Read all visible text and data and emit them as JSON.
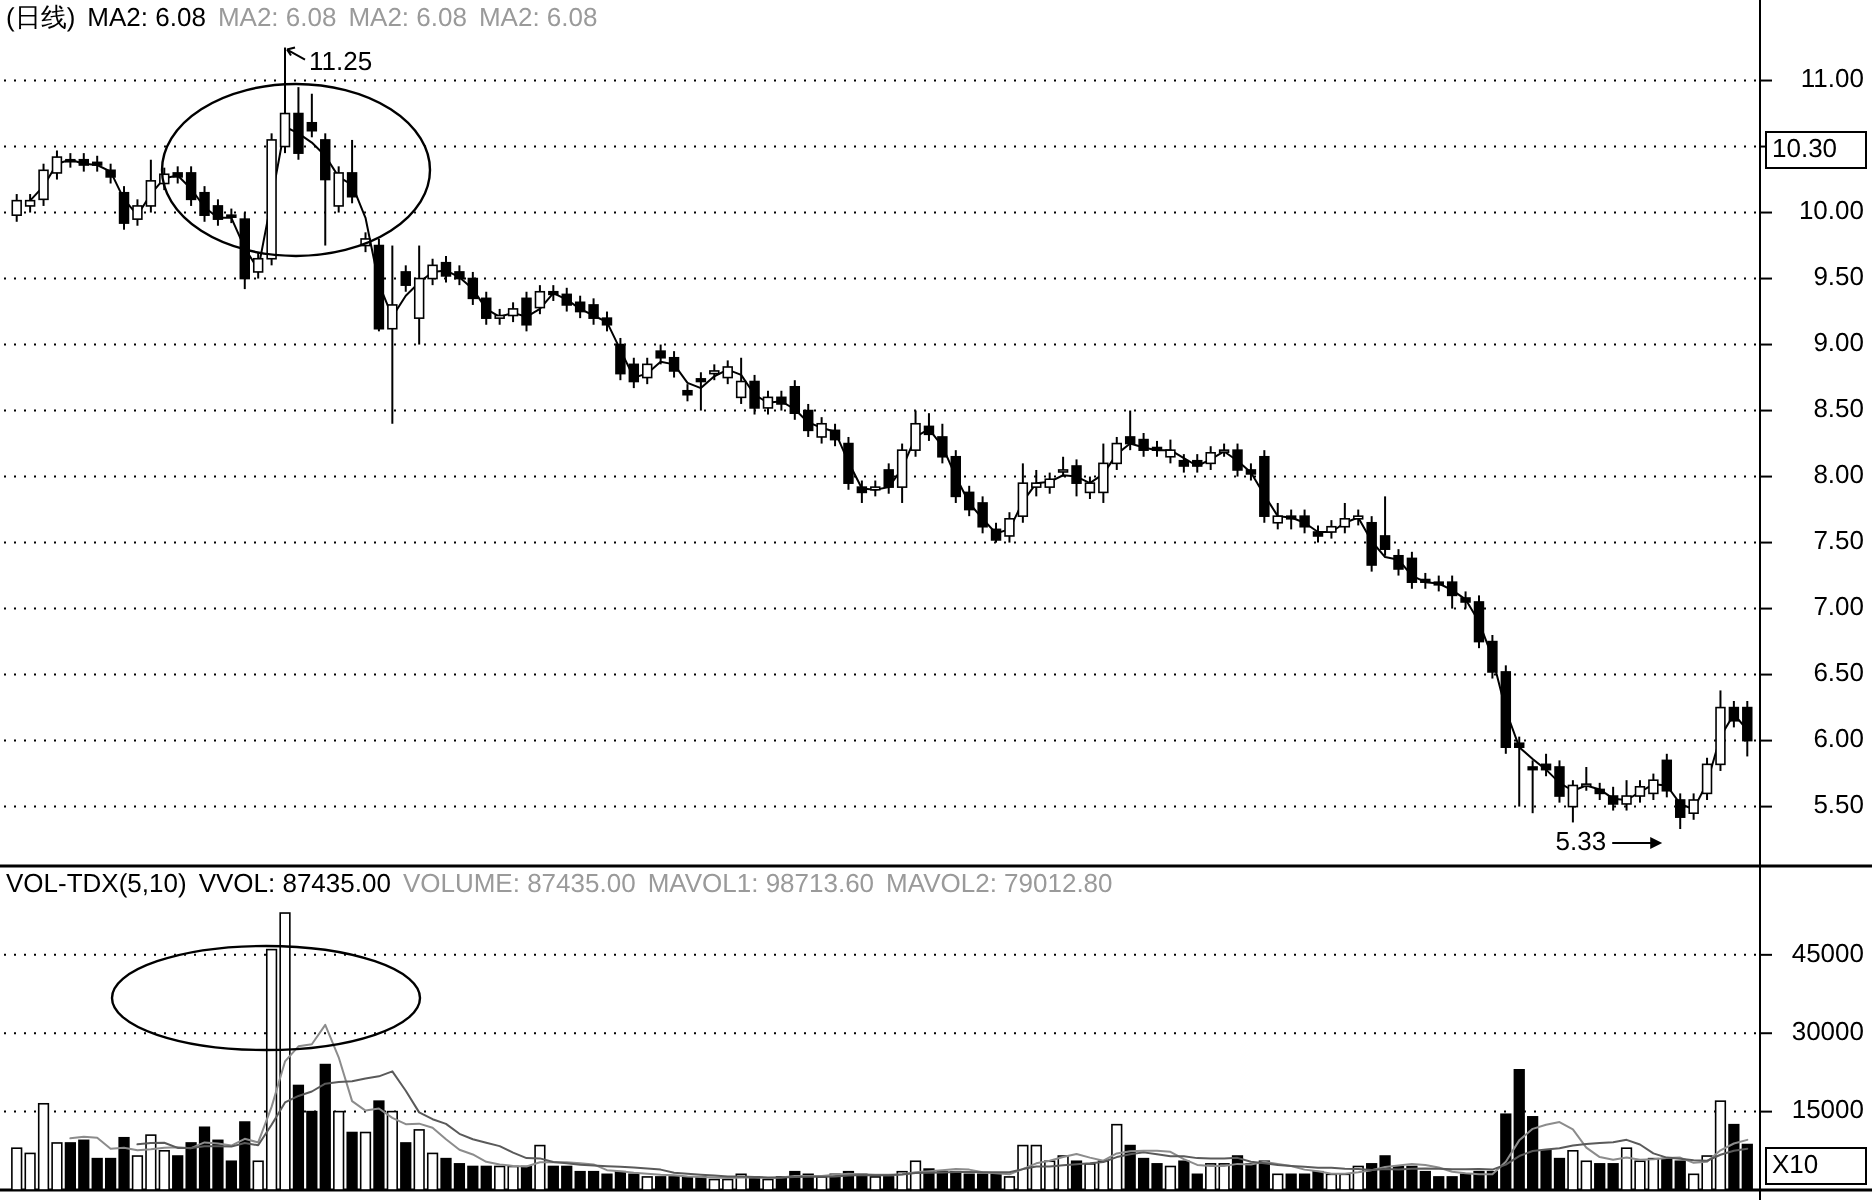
{
  "chart_data": [
    {
      "type": "candlestick",
      "title": "(日线)",
      "ylim": [
        5.05,
        11.61
      ],
      "yticks": [
        {
          "value": 5.5,
          "label": "5.50"
        },
        {
          "value": 6,
          "label": "6.00"
        },
        {
          "value": 6.5,
          "label": "6.50"
        },
        {
          "value": 7,
          "label": "7.00"
        },
        {
          "value": 7.5,
          "label": "7.50"
        },
        {
          "value": 8,
          "label": "8.00"
        },
        {
          "value": 8.5,
          "label": "8.50"
        },
        {
          "value": 9,
          "label": "9.00"
        },
        {
          "value": 9.5,
          "label": "9.50"
        },
        {
          "value": 10,
          "label": "10.00"
        },
        {
          "value": 10.5,
          "label": null
        },
        {
          "value": 11,
          "label": "11.00"
        }
      ],
      "grid": "y",
      "tick_labels": "y",
      "annotations": [
        "MA2: 6.08",
        "MA2: 6.08",
        "MA2: 6.08",
        "11.25",
        "5.33",
        "10.30"
      ],
      "categories": [
        null,
        null,
        null,
        null,
        null,
        null,
        null,
        null,
        null,
        null,
        null,
        null,
        null,
        null,
        null,
        null,
        null,
        null,
        null,
        null,
        null,
        null,
        null,
        null,
        null,
        null,
        null,
        null,
        null,
        null,
        null,
        null,
        null,
        null,
        null,
        null,
        null,
        null,
        null,
        null,
        null,
        null,
        null,
        null,
        null,
        null,
        null,
        null,
        null,
        null,
        null,
        null,
        null,
        null,
        null,
        null,
        null,
        null,
        null,
        null,
        null,
        null,
        null,
        null,
        null,
        null,
        null,
        null,
        null,
        null,
        null,
        null,
        null,
        null,
        null,
        null,
        null,
        null,
        null,
        null,
        null,
        null,
        null,
        null,
        null,
        null,
        null,
        null,
        null,
        null,
        null,
        null,
        null,
        null,
        null,
        null,
        null,
        null,
        null,
        null,
        null,
        null,
        null,
        null,
        null,
        null,
        null,
        null,
        null,
        null,
        null,
        null,
        null,
        null,
        null,
        null,
        null,
        null,
        null,
        null,
        null,
        null,
        null,
        null,
        null,
        null,
        null,
        null,
        null,
        null
      ],
      "ohlc": [
        [
          9.98,
          10.14,
          9.93,
          10.09
        ],
        [
          10.05,
          10.14,
          10.0,
          10.09
        ],
        [
          10.1,
          10.37,
          10.05,
          10.32
        ],
        [
          10.3,
          10.47,
          10.25,
          10.42
        ],
        [
          10.4,
          10.45,
          10.34,
          10.39
        ],
        [
          10.4,
          10.45,
          10.31,
          10.36
        ],
        [
          10.38,
          10.43,
          10.31,
          10.36
        ],
        [
          10.32,
          10.37,
          10.22,
          10.27
        ],
        [
          10.15,
          10.2,
          9.87,
          9.92
        ],
        [
          9.95,
          10.1,
          9.9,
          10.05
        ],
        [
          10.05,
          10.4,
          10.0,
          10.24
        ],
        [
          10.22,
          10.34,
          10.17,
          10.29
        ],
        [
          10.3,
          10.35,
          10.22,
          10.27
        ],
        [
          10.3,
          10.35,
          10.05,
          10.1
        ],
        [
          10.15,
          10.2,
          9.93,
          9.98
        ],
        [
          10.05,
          10.1,
          9.9,
          9.95
        ],
        [
          9.98,
          10.03,
          9.92,
          9.97
        ],
        [
          9.95,
          10.0,
          9.42,
          9.5
        ],
        [
          9.55,
          9.7,
          9.5,
          9.65
        ],
        [
          9.65,
          10.6,
          9.6,
          10.55
        ],
        [
          10.5,
          11.25,
          10.45,
          10.75
        ],
        [
          10.75,
          10.95,
          10.4,
          10.45
        ],
        [
          10.68,
          10.9,
          10.57,
          10.62
        ],
        [
          10.55,
          10.6,
          9.75,
          10.25
        ],
        [
          10.05,
          10.35,
          10.0,
          10.3
        ],
        [
          10.3,
          10.55,
          10.07,
          10.12
        ],
        [
          9.75,
          9.85,
          9.7,
          9.8
        ],
        [
          9.75,
          9.8,
          9.1,
          9.12
        ],
        [
          9.12,
          9.75,
          8.4,
          9.3
        ],
        [
          9.55,
          9.6,
          9.4,
          9.45
        ],
        [
          9.2,
          9.75,
          9.0,
          9.5
        ],
        [
          9.5,
          9.65,
          9.45,
          9.6
        ],
        [
          9.62,
          9.67,
          9.47,
          9.52
        ],
        [
          9.55,
          9.6,
          9.45,
          9.5
        ],
        [
          9.5,
          9.55,
          9.3,
          9.35
        ],
        [
          9.35,
          9.4,
          9.15,
          9.2
        ],
        [
          9.2,
          9.27,
          9.15,
          9.22
        ],
        [
          9.22,
          9.32,
          9.17,
          9.27
        ],
        [
          9.35,
          9.4,
          9.1,
          9.15
        ],
        [
          9.28,
          9.45,
          9.23,
          9.4
        ],
        [
          9.4,
          9.45,
          9.33,
          9.38
        ],
        [
          9.38,
          9.43,
          9.25,
          9.3
        ],
        [
          9.32,
          9.37,
          9.2,
          9.25
        ],
        [
          9.3,
          9.35,
          9.15,
          9.2
        ],
        [
          9.2,
          9.25,
          9.1,
          9.15
        ],
        [
          9.0,
          9.05,
          8.73,
          8.78
        ],
        [
          8.85,
          8.9,
          8.67,
          8.72
        ],
        [
          8.75,
          8.9,
          8.7,
          8.85
        ],
        [
          8.95,
          9.0,
          8.85,
          8.9
        ],
        [
          8.9,
          8.95,
          8.75,
          8.8
        ],
        [
          8.65,
          8.7,
          8.57,
          8.62
        ],
        [
          8.74,
          8.79,
          8.5,
          8.72
        ],
        [
          8.78,
          8.85,
          8.73,
          8.8
        ],
        [
          8.75,
          8.88,
          8.7,
          8.83
        ],
        [
          8.6,
          8.9,
          8.55,
          8.72
        ],
        [
          8.72,
          8.77,
          8.47,
          8.52
        ],
        [
          8.52,
          8.65,
          8.47,
          8.6
        ],
        [
          8.6,
          8.65,
          8.5,
          8.55
        ],
        [
          8.68,
          8.73,
          8.43,
          8.48
        ],
        [
          8.5,
          8.55,
          8.3,
          8.35
        ],
        [
          8.3,
          8.45,
          8.25,
          8.4
        ],
        [
          8.35,
          8.4,
          8.23,
          8.28
        ],
        [
          8.25,
          8.3,
          7.9,
          7.95
        ],
        [
          7.92,
          7.97,
          7.8,
          7.88
        ],
        [
          7.9,
          7.97,
          7.85,
          7.92
        ],
        [
          8.05,
          8.1,
          7.87,
          7.92
        ],
        [
          7.92,
          8.25,
          7.8,
          8.2
        ],
        [
          8.2,
          8.5,
          8.15,
          8.4
        ],
        [
          8.38,
          8.48,
          8.27,
          8.32
        ],
        [
          8.3,
          8.4,
          8.1,
          8.15
        ],
        [
          8.15,
          8.2,
          7.8,
          7.85
        ],
        [
          7.88,
          7.93,
          7.7,
          7.75
        ],
        [
          7.8,
          7.85,
          7.57,
          7.62
        ],
        [
          7.6,
          7.65,
          7.5,
          7.52
        ],
        [
          7.55,
          7.73,
          7.5,
          7.68
        ],
        [
          7.7,
          8.1,
          7.65,
          7.95
        ],
        [
          7.92,
          8.05,
          7.85,
          7.95
        ],
        [
          7.92,
          8.03,
          7.87,
          7.98
        ],
        [
          8.05,
          8.15,
          8.0,
          8.05
        ],
        [
          8.08,
          8.13,
          7.85,
          7.95
        ],
        [
          7.88,
          8.0,
          7.83,
          7.95
        ],
        [
          7.88,
          8.25,
          7.8,
          8.1
        ],
        [
          8.1,
          8.3,
          8.05,
          8.25
        ],
        [
          8.3,
          8.5,
          8.2,
          8.25
        ],
        [
          8.28,
          8.33,
          8.15,
          8.2
        ],
        [
          8.22,
          8.27,
          8.15,
          8.2
        ],
        [
          8.15,
          8.28,
          8.1,
          8.2
        ],
        [
          8.12,
          8.17,
          8.03,
          8.08
        ],
        [
          8.12,
          8.17,
          8.03,
          8.08
        ],
        [
          8.1,
          8.23,
          8.05,
          8.18
        ],
        [
          8.2,
          8.25,
          8.15,
          8.2
        ],
        [
          8.2,
          8.25,
          8.0,
          8.05
        ],
        [
          8.05,
          8.1,
          7.97,
          8.02
        ],
        [
          8.15,
          8.2,
          7.65,
          7.7
        ],
        [
          7.65,
          7.8,
          7.6,
          7.7
        ],
        [
          7.7,
          7.75,
          7.6,
          7.68
        ],
        [
          7.7,
          7.75,
          7.57,
          7.62
        ],
        [
          7.58,
          7.63,
          7.5,
          7.55
        ],
        [
          7.58,
          7.67,
          7.53,
          7.62
        ],
        [
          7.62,
          7.8,
          7.57,
          7.68
        ],
        [
          7.68,
          7.75,
          7.63,
          7.7
        ],
        [
          7.65,
          7.7,
          7.28,
          7.33
        ],
        [
          7.55,
          7.85,
          7.4,
          7.45
        ],
        [
          7.4,
          7.45,
          7.25,
          7.3
        ],
        [
          7.38,
          7.43,
          7.15,
          7.2
        ],
        [
          7.22,
          7.27,
          7.15,
          7.2
        ],
        [
          7.2,
          7.25,
          7.13,
          7.18
        ],
        [
          7.2,
          7.25,
          7.0,
          7.1
        ],
        [
          7.08,
          7.13,
          7.0,
          7.05
        ],
        [
          7.05,
          7.1,
          6.7,
          6.75
        ],
        [
          6.75,
          6.8,
          6.47,
          6.52
        ],
        [
          6.52,
          6.57,
          5.9,
          5.95
        ],
        [
          5.98,
          6.03,
          5.5,
          5.95
        ],
        [
          5.8,
          5.85,
          5.45,
          5.78
        ],
        [
          5.82,
          5.9,
          5.73,
          5.78
        ],
        [
          5.8,
          5.85,
          5.53,
          5.58
        ],
        [
          5.5,
          5.7,
          5.38,
          5.66
        ],
        [
          5.67,
          5.8,
          5.62,
          5.67
        ],
        [
          5.63,
          5.68,
          5.55,
          5.6
        ],
        [
          5.58,
          5.65,
          5.47,
          5.52
        ],
        [
          5.52,
          5.7,
          5.47,
          5.58
        ],
        [
          5.58,
          5.7,
          5.53,
          5.65
        ],
        [
          5.6,
          5.75,
          5.55,
          5.7
        ],
        [
          5.85,
          5.9,
          5.57,
          5.62
        ],
        [
          5.55,
          5.6,
          5.33,
          5.42
        ],
        [
          5.45,
          5.6,
          5.4,
          5.55
        ],
        [
          5.6,
          5.87,
          5.55,
          5.82
        ],
        [
          5.82,
          6.38,
          5.77,
          6.25
        ],
        [
          6.25,
          6.3,
          6.1,
          6.15
        ],
        [
          6.25,
          6.3,
          5.88,
          6.0
        ]
      ],
      "series": [
        {
          "name": "MA2: 6.08",
          "type": "line",
          "color": "#000000",
          "values": [
            null,
            10.09,
            10.2,
            10.37,
            10.4,
            10.37,
            10.36,
            10.31,
            10.1,
            9.98,
            10.14,
            10.26,
            10.28,
            10.18,
            10.04,
            9.96,
            9.96,
            9.73,
            9.57,
            10.1,
            10.65,
            10.6,
            10.53,
            10.43,
            10.27,
            10.21,
            9.96,
            9.46,
            9.21,
            9.37,
            9.47,
            9.55,
            9.56,
            9.51,
            9.42,
            9.27,
            9.21,
            9.24,
            9.21,
            9.27,
            9.39,
            9.34,
            9.27,
            9.22,
            9.17,
            8.96,
            8.75,
            8.78,
            8.87,
            8.85,
            8.71,
            8.67,
            8.76,
            8.81,
            8.77,
            8.62,
            8.56,
            8.57,
            8.51,
            8.41,
            8.37,
            8.34,
            8.11,
            7.91,
            7.9,
            7.92,
            8.06,
            8.3,
            8.36,
            8.23,
            8.0,
            7.8,
            7.68,
            7.57,
            7.6,
            7.81,
            7.95,
            7.96,
            8.01,
            8.0,
            7.95,
            8.02,
            8.17,
            8.25,
            8.22,
            8.2,
            8.2,
            8.14,
            8.08,
            8.13,
            8.19,
            8.12,
            8.03,
            7.86,
            7.7,
            7.69,
            7.65,
            7.58,
            7.58,
            7.65,
            7.69,
            7.51,
            7.39,
            7.37,
            7.25,
            7.2,
            7.19,
            7.14,
            7.07,
            6.9,
            6.63,
            6.23,
            5.95,
            5.86,
            5.78,
            5.68,
            5.62,
            5.66,
            5.63,
            5.56,
            5.55,
            5.61,
            5.67,
            5.66,
            5.52,
            5.48,
            5.68,
            6.03,
            6.2,
            6.08
          ]
        }
      ]
    },
    {
      "type": "bar",
      "title": "VOL-TDX(5,10)",
      "ylim": [
        0,
        62000
      ],
      "yticks": [
        15000,
        30000,
        45000
      ],
      "grid": "y",
      "tick_labels": "y",
      "annotations": [
        "VOLUME: 87435.00",
        "MAVOL1: 98713.60",
        "MAVOL2: 79012.80",
        "X10"
      ],
      "categories": [
        null,
        null,
        null,
        null,
        null,
        null,
        null,
        null,
        null,
        null,
        null,
        null,
        null,
        null,
        null,
        null,
        null,
        null,
        null,
        null,
        null,
        null,
        null,
        null,
        null,
        null,
        null,
        null,
        null,
        null,
        null,
        null,
        null,
        null,
        null,
        null,
        null,
        null,
        null,
        null,
        null,
        null,
        null,
        null,
        null,
        null,
        null,
        null,
        null,
        null,
        null,
        null,
        null,
        null,
        null,
        null,
        null,
        null,
        null,
        null,
        null,
        null,
        null,
        null,
        null,
        null,
        null,
        null,
        null,
        null,
        null,
        null,
        null,
        null,
        null,
        null,
        null,
        null,
        null,
        null,
        null,
        null,
        null,
        null,
        null,
        null,
        null,
        null,
        null,
        null,
        null,
        null,
        null,
        null,
        null,
        null,
        null,
        null,
        null,
        null,
        null,
        null,
        null,
        null,
        null,
        null,
        null,
        null,
        null,
        null,
        null,
        null,
        null,
        null,
        null,
        null,
        null,
        null,
        null,
        null,
        null,
        null,
        null,
        null,
        null,
        null,
        null,
        null,
        null,
        null
      ],
      "series": [
        {
          "name": "VVOL: 87435.00",
          "type": "bar",
          "values": [
            8000,
            7000,
            16500,
            9000,
            9000,
            9500,
            6000,
            6000,
            10000,
            6500,
            10500,
            7500,
            6500,
            9000,
            12000,
            9500,
            5500,
            13000,
            5500,
            46000,
            53000,
            20000,
            15000,
            24000,
            15000,
            11000,
            11000,
            17000,
            15000,
            9000,
            11500,
            7000,
            6000,
            5000,
            4500,
            4500,
            4500,
            4500,
            4500,
            8500,
            4500,
            4500,
            3500,
            3500,
            3000,
            3500,
            3000,
            2500,
            2500,
            2500,
            2500,
            2500,
            2000,
            2000,
            3000,
            2500,
            2000,
            2500,
            3500,
            3000,
            2500,
            3000,
            3500,
            3000,
            2500,
            2500,
            3500,
            5500,
            4000,
            3500,
            3500,
            3000,
            3000,
            3000,
            2500,
            8500,
            8500,
            5500,
            6500,
            5500,
            5000,
            5500,
            12500,
            8500,
            6000,
            5000,
            4500,
            5500,
            3000,
            5000,
            5000,
            6500,
            5000,
            5500,
            3000,
            3000,
            3000,
            3500,
            3000,
            3000,
            4500,
            5000,
            6500,
            4500,
            4500,
            3500,
            2500,
            2500,
            3000,
            3500,
            3500,
            14500,
            23000,
            14000,
            7500,
            6000,
            7500,
            5500,
            5000,
            5000,
            8000,
            5500,
            6000,
            6000,
            5500,
            3000,
            6500,
            17000,
            12500,
            8700
          ],
          "colors": [
            "#ffffff",
            "#ffffff",
            "#ffffff",
            "#ffffff",
            "#000000",
            "#000000",
            "#000000",
            "#000000",
            "#000000",
            "#ffffff",
            "#ffffff",
            "#ffffff",
            "#000000",
            "#000000",
            "#000000",
            "#000000",
            "#000000",
            "#000000",
            "#ffffff",
            "#ffffff",
            "#ffffff",
            "#000000",
            "#000000",
            "#000000",
            "#ffffff",
            "#000000",
            "#ffffff",
            "#000000",
            "#ffffff",
            "#000000",
            "#ffffff",
            "#ffffff",
            "#000000",
            "#000000",
            "#000000",
            "#000000",
            "#ffffff",
            "#ffffff",
            "#000000",
            "#ffffff",
            "#000000",
            "#000000",
            "#000000",
            "#000000",
            "#000000",
            "#000000",
            "#000000",
            "#ffffff",
            "#000000",
            "#000000",
            "#000000",
            "#000000",
            "#ffffff",
            "#ffffff",
            "#ffffff",
            "#000000",
            "#ffffff",
            "#000000",
            "#000000",
            "#000000",
            "#ffffff",
            "#000000",
            "#000000",
            "#000000",
            "#ffffff",
            "#000000",
            "#ffffff",
            "#ffffff",
            "#000000",
            "#000000",
            "#000000",
            "#000000",
            "#000000",
            "#000000",
            "#ffffff",
            "#ffffff",
            "#ffffff",
            "#ffffff",
            "#ffffff",
            "#000000",
            "#ffffff",
            "#ffffff",
            "#ffffff",
            "#000000",
            "#000000",
            "#000000",
            "#ffffff",
            "#000000",
            "#000000",
            "#ffffff",
            "#ffffff",
            "#000000",
            "#000000",
            "#000000",
            "#ffffff",
            "#000000",
            "#000000",
            "#000000",
            "#ffffff",
            "#ffffff",
            "#ffffff",
            "#000000",
            "#000000",
            "#000000",
            "#000000",
            "#000000",
            "#000000",
            "#000000",
            "#000000",
            "#000000",
            "#000000",
            "#000000",
            "#000000",
            "#000000",
            "#000000",
            "#000000",
            "#ffffff",
            "#ffffff",
            "#000000",
            "#000000",
            "#ffffff",
            "#ffffff",
            "#ffffff",
            "#000000",
            "#000000",
            "#ffffff",
            "#ffffff",
            "#ffffff",
            "#000000",
            "#000000"
          ]
        },
        {
          "type": "line",
          "color": "#8c8c8c",
          "values": [
            null,
            null,
            null,
            null,
            9900,
            10200,
            10000,
            7900,
            8100,
            7600,
            7800,
            8100,
            8200,
            8000,
            9100,
            8900,
            8500,
            9800,
            9100,
            15900,
            24600,
            27500,
            27900,
            31600,
            25400,
            17000,
            15200,
            15600,
            13800,
            12600,
            12700,
            11900,
            9700,
            7700,
            6800,
            5400,
            4900,
            4600,
            4500,
            5300,
            5300,
            5300,
            5100,
            4900,
            3800,
            3600,
            3300,
            3100,
            2900,
            2800,
            2600,
            2500,
            2400,
            2300,
            2400,
            2400,
            2300,
            2400,
            2700,
            2700,
            2700,
            2900,
            3100,
            3000,
            2900,
            2900,
            3000,
            3400,
            3600,
            3800,
            4000,
            3900,
            3400,
            3200,
            3000,
            4000,
            5100,
            5600,
            6300,
            6900,
            6200,
            5600,
            7000,
            7400,
            7500,
            7500,
            7300,
            5900,
            4800,
            4600,
            4600,
            5000,
            4900,
            5400,
            5000,
            4600,
            3900,
            3600,
            3100,
            3100,
            3400,
            3800,
            4400,
            4700,
            5000,
            4800,
            4300,
            3500,
            3200,
            3000,
            3000,
            5400,
            9500,
            11700,
            12500,
            13000,
            11600,
            8100,
            6300,
            5800,
            6200,
            5800,
            5900,
            6100,
            6200,
            5200,
            5400,
            7600,
            8900,
            9600
          ]
        },
        {
          "type": "line",
          "color": "#5a5a5a",
          "values": [
            null,
            null,
            null,
            null,
            null,
            null,
            null,
            null,
            null,
            8750,
            9000,
            9050,
            8050,
            8050,
            8350,
            8350,
            8300,
            9000,
            8550,
            12500,
            16750,
            18000,
            18850,
            20350,
            20650,
            20800,
            21350,
            21750,
            22700,
            19000,
            14850,
            13550,
            12650,
            10750,
            9700,
            9050,
            8400,
            7150,
            6100,
            6050,
            5350,
            5100,
            4850,
            4700,
            4550,
            4450,
            4300,
            4100,
            3900,
            3300,
            3100,
            2900,
            2750,
            2600,
            2600,
            2500,
            2400,
            2400,
            2500,
            2550,
            2550,
            2600,
            2750,
            2850,
            2800,
            2800,
            2950,
            3250,
            3300,
            3350,
            3450,
            3450,
            3400,
            3400,
            3400,
            4000,
            4500,
            4500,
            4750,
            4950,
            5100,
            5350,
            6300,
            6850,
            7200,
            6850,
            6450,
            6450,
            6100,
            6050,
            6050,
            6150,
            5400,
            5100,
            4800,
            4600,
            4450,
            4250,
            4250,
            4050,
            4000,
            3850,
            4000,
            3900,
            4050,
            4100,
            4050,
            3950,
            3950,
            4000,
            3900,
            4850,
            6500,
            7450,
            7750,
            8000,
            8500,
            8800,
            9000,
            9150,
            9600,
            8700,
            7000,
            6200,
            6000,
            5700,
            5600,
            6750,
            7500,
            7900
          ]
        }
      ]
    }
  ]
}
